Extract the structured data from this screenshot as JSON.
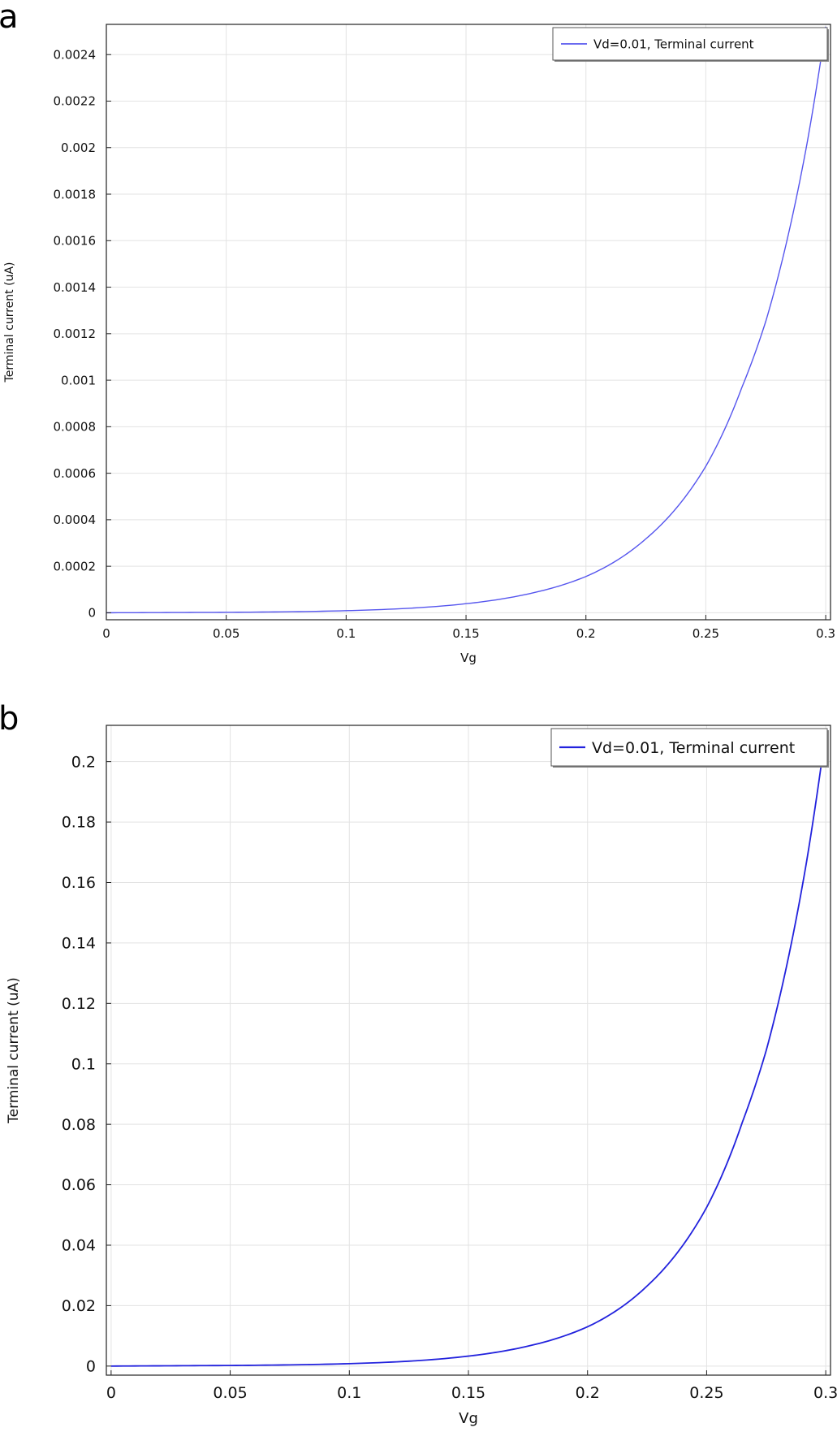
{
  "chart_data": [
    {
      "panel_label": "a",
      "type": "line",
      "xlabel": "Vg",
      "ylabel": "Terminal current (uA)",
      "xlim": [
        0,
        0.302
      ],
      "ylim": [
        -3e-05,
        0.00253
      ],
      "xticks": [
        0,
        0.05,
        0.1,
        0.15,
        0.2,
        0.25,
        0.3
      ],
      "xtick_labels": [
        "0",
        "0.05",
        "0.1",
        "0.15",
        "0.2",
        "0.25",
        "0.3"
      ],
      "yticks": [
        0,
        0.0002,
        0.0004,
        0.0006,
        0.0008,
        0.001,
        0.0012,
        0.0014,
        0.0016,
        0.0018,
        0.002,
        0.0022,
        0.0024
      ],
      "ytick_labels": [
        "0",
        "0.0002",
        "0.0004",
        "0.0006",
        "0.0008",
        "0.001",
        "0.0012",
        "0.0014",
        "0.0016",
        "0.0018",
        "0.002",
        "0.0022",
        "0.0024"
      ],
      "grid": true,
      "legend_position": "top-right",
      "series": [
        {
          "name": "Vd=0.01, Terminal current",
          "color": "#5555ee",
          "x": [
            0,
            0.05,
            0.1,
            0.15,
            0.175,
            0.2,
            0.225,
            0.25,
            0.265,
            0.275,
            0.285,
            0.292,
            0.3
          ],
          "y": [
            0.0,
            2e-06,
            9e-06,
            3.9e-05,
            7.9e-05,
            0.000156,
            0.000318,
            0.00063,
            0.000968,
            0.001253,
            0.001653,
            0.002006,
            0.00252
          ]
        }
      ]
    },
    {
      "panel_label": "b",
      "type": "line",
      "xlabel": "Vg",
      "ylabel": "Terminal current (uA)",
      "xlim": [
        -0.002,
        0.302
      ],
      "ylim": [
        -0.003,
        0.212
      ],
      "xticks": [
        0,
        0.05,
        0.1,
        0.15,
        0.2,
        0.25,
        0.3
      ],
      "xtick_labels": [
        "0",
        "0.05",
        "0.1",
        "0.15",
        "0.2",
        "0.25",
        "0.3"
      ],
      "yticks": [
        0,
        0.02,
        0.04,
        0.06,
        0.08,
        0.1,
        0.12,
        0.14,
        0.16,
        0.18,
        0.2
      ],
      "ytick_labels": [
        "0",
        "0.02",
        "0.04",
        "0.06",
        "0.08",
        "0.1",
        "0.12",
        "0.14",
        "0.16",
        "0.18",
        "0.2"
      ],
      "grid": true,
      "legend_position": "top-right",
      "series": [
        {
          "name": "Vd=0.01, Terminal current",
          "color": "#2222dd",
          "x": [
            0,
            0.05,
            0.1,
            0.15,
            0.175,
            0.2,
            0.225,
            0.25,
            0.265,
            0.275,
            0.285,
            0.292,
            0.3
          ],
          "y": [
            0.0,
            0.0002,
            0.0008,
            0.0033,
            0.0066,
            0.013,
            0.0265,
            0.0525,
            0.0807,
            0.1044,
            0.1377,
            0.1671,
            0.21
          ]
        }
      ]
    }
  ]
}
